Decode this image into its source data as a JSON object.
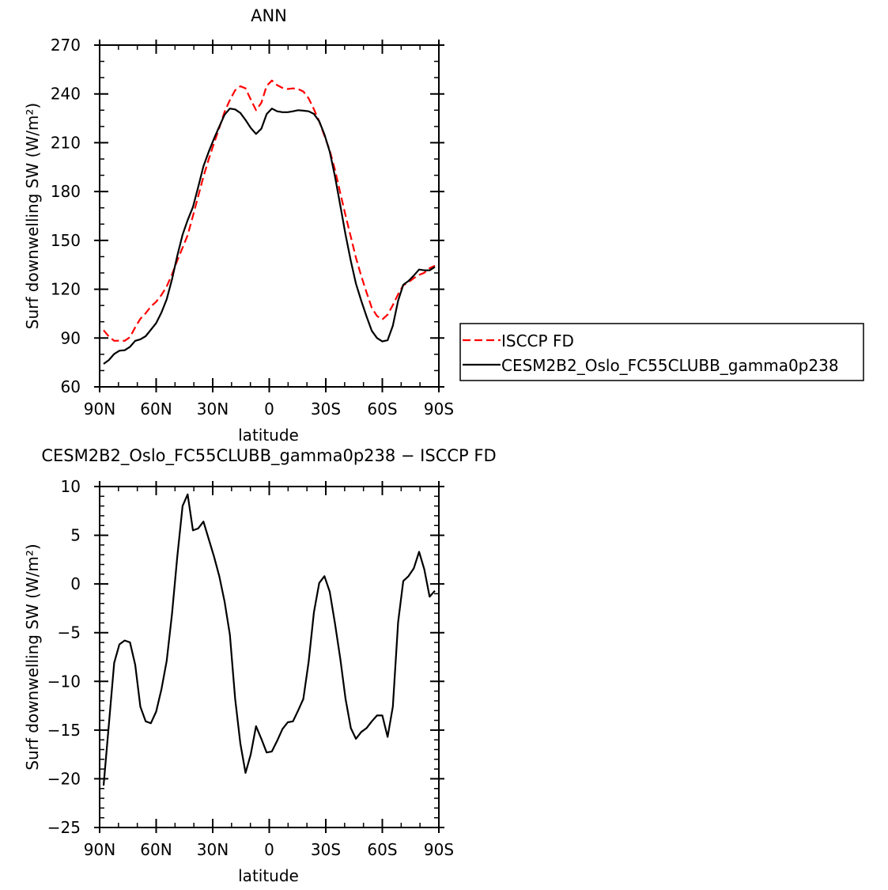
{
  "chart_data": [
    {
      "type": "line",
      "title": "ANN",
      "xlabel": "latitude",
      "ylabel": "Surf downwelling SW (W/m²)",
      "xlim": [
        90,
        -90
      ],
      "ylim": [
        60,
        270
      ],
      "xticks": [
        90,
        60,
        30,
        0,
        -30,
        -60,
        -90
      ],
      "xtick_labels": [
        "90N",
        "60N",
        "30N",
        "0",
        "30S",
        "60S",
        "90S"
      ],
      "yticks": [
        60,
        90,
        120,
        150,
        180,
        210,
        240,
        270
      ],
      "ytick_labels": [
        "60",
        "90",
        "120",
        "150",
        "180",
        "210",
        "240",
        "270"
      ],
      "grid": false,
      "legend_placement": "right",
      "x": [
        87.9,
        85.1,
        82.3,
        79.5,
        76.7,
        73.9,
        71.1,
        68.4,
        65.6,
        62.8,
        60.0,
        57.2,
        54.4,
        51.6,
        48.8,
        46.0,
        43.3,
        40.5,
        37.7,
        34.9,
        32.1,
        29.3,
        26.5,
        23.7,
        20.9,
        18.1,
        15.3,
        12.6,
        9.8,
        7.0,
        4.2,
        1.4,
        -1.4,
        -4.2,
        -7.0,
        -9.8,
        -12.6,
        -15.3,
        -18.1,
        -20.9,
        -23.7,
        -26.5,
        -29.3,
        -32.1,
        -34.9,
        -37.7,
        -40.5,
        -43.3,
        -46.0,
        -48.8,
        -51.6,
        -54.4,
        -57.2,
        -60.0,
        -62.8,
        -65.6,
        -68.4,
        -71.1,
        -73.9,
        -76.7,
        -79.5,
        -82.3,
        -85.1,
        -87.9
      ],
      "series": [
        {
          "name": "ISCCP FD",
          "color": "#ff0000",
          "dash": "dashed",
          "values": [
            94.8,
            90.9,
            88.3,
            88.4,
            88.3,
            90.6,
            96.6,
            101.8,
            105.2,
            109.4,
            112.3,
            116.5,
            121.7,
            129.1,
            137.7,
            145.5,
            153.2,
            165.0,
            177.0,
            189.2,
            199.9,
            209.8,
            219.1,
            229.0,
            236.2,
            242.3,
            244.7,
            243.4,
            236.6,
            230.0,
            234.5,
            244.9,
            248.2,
            245.4,
            243.7,
            243.0,
            243.4,
            243.0,
            241.5,
            237.3,
            230.6,
            223.1,
            214.3,
            205.3,
            193.2,
            179.0,
            165.3,
            152.1,
            139.4,
            128.2,
            118.1,
            108.5,
            103.5,
            101.4,
            104.4,
            110.2,
            116.9,
            122.4,
            124.3,
            126.8,
            128.8,
            130.1,
            132.9,
            134.4
          ]
        },
        {
          "name": "CESM2B2_Oslo_FC55CLUBB_gamma0p238",
          "color": "#000000",
          "dash": "solid",
          "values": [
            74.1,
            76.5,
            80.2,
            82.2,
            82.5,
            84.6,
            88.3,
            89.2,
            91.1,
            95.1,
            99.2,
            105.7,
            113.8,
            126.0,
            140.5,
            153.5,
            162.4,
            170.5,
            182.7,
            195.6,
            204.5,
            212.6,
            219.9,
            227.2,
            231.0,
            230.5,
            228.3,
            224.0,
            219.1,
            215.4,
            218.6,
            227.6,
            231.0,
            229.3,
            228.8,
            228.8,
            229.3,
            230.0,
            229.7,
            229.3,
            227.7,
            223.2,
            215.1,
            204.5,
            189.1,
            171.3,
            153.5,
            137.3,
            123.5,
            113.0,
            103.3,
            94.4,
            90.0,
            87.9,
            88.7,
            97.6,
            113.0,
            122.7,
            125.1,
            128.4,
            132.1,
            131.6,
            131.6,
            133.7
          ]
        }
      ]
    },
    {
      "type": "line",
      "title": "CESM2B2_Oslo_FC55CLUBB_gamma0p238 − ISCCP FD",
      "xlabel": "latitude",
      "ylabel": "Surf downwelling SW (W/m²)",
      "xlim": [
        90,
        -90
      ],
      "ylim": [
        -25,
        10
      ],
      "xticks": [
        90,
        60,
        30,
        0,
        -30,
        -60,
        -90
      ],
      "xtick_labels": [
        "90N",
        "60N",
        "30N",
        "0",
        "30S",
        "60S",
        "90S"
      ],
      "yticks": [
        -25,
        -20,
        -15,
        -10,
        -5,
        0,
        5,
        10
      ],
      "ytick_labels": [
        "−25",
        "−20",
        "−15",
        "−10",
        "−5",
        "0",
        "5",
        "10"
      ],
      "grid": false,
      "series": [
        {
          "name": "difference",
          "color": "#000000",
          "dash": "solid",
          "values": [
            -20.7,
            -14.4,
            -8.1,
            -6.2,
            -5.8,
            -6.0,
            -8.3,
            -12.6,
            -14.1,
            -14.3,
            -13.1,
            -10.8,
            -7.9,
            -3.1,
            2.8,
            8.0,
            9.2,
            5.5,
            5.7,
            6.4,
            4.6,
            2.8,
            0.8,
            -1.8,
            -5.2,
            -11.8,
            -16.4,
            -19.4,
            -17.5,
            -14.6,
            -15.9,
            -17.3,
            -17.2,
            -16.1,
            -14.9,
            -14.2,
            -14.1,
            -13.0,
            -11.8,
            -8.0,
            -2.9,
            0.1,
            0.8,
            -0.8,
            -4.1,
            -7.7,
            -11.8,
            -14.8,
            -15.9,
            -15.2,
            -14.8,
            -14.1,
            -13.5,
            -13.5,
            -15.7,
            -12.6,
            -3.9,
            0.3,
            0.8,
            1.6,
            3.3,
            1.5,
            -1.3,
            -0.7
          ]
        }
      ]
    }
  ]
}
